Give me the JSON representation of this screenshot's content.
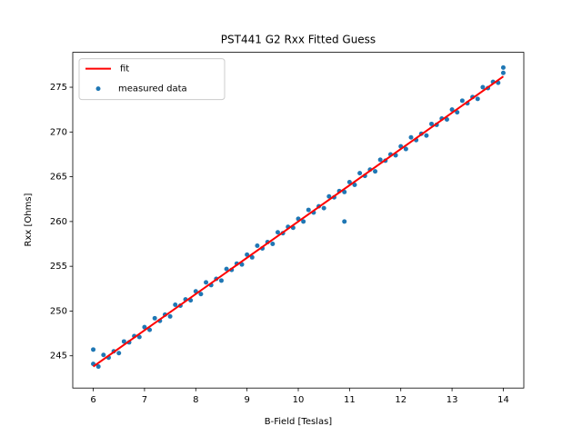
{
  "chart_data": {
    "type": "scatter",
    "title": "PST441 G2 Rxx Fitted Guess",
    "x_label": "B-Field [Teslas]",
    "y_label": "Rxx [Ohms]",
    "xlim": [
      5.6,
      14.4
    ],
    "ylim": [
      241.4,
      278.9
    ],
    "xticks": [
      6,
      7,
      8,
      9,
      10,
      11,
      12,
      13,
      14
    ],
    "yticks": [
      245,
      250,
      255,
      260,
      265,
      270,
      275
    ],
    "legend": "upper left",
    "fit": {
      "name": "fit",
      "color": "#ff0000",
      "x": [
        6,
        14
      ],
      "values": [
        243.8,
        276.2
      ]
    },
    "series": [
      {
        "name": "measured data",
        "color": "#1f77b4",
        "x": [
          6.0,
          6.1,
          6.2,
          6.3,
          6.4,
          6.5,
          6.6,
          6.7,
          6.8,
          6.9,
          7.0,
          7.1,
          7.2,
          7.3,
          7.4,
          7.5,
          7.6,
          7.7,
          7.8,
          7.9,
          8.0,
          8.1,
          8.2,
          8.3,
          8.4,
          8.5,
          8.6,
          8.7,
          8.8,
          8.9,
          9.0,
          9.1,
          9.2,
          9.3,
          9.4,
          9.5,
          9.6,
          9.7,
          9.8,
          9.9,
          10.0,
          10.1,
          10.2,
          10.3,
          10.4,
          10.5,
          10.6,
          10.7,
          10.8,
          10.9,
          11.0,
          11.1,
          11.2,
          11.3,
          11.4,
          11.5,
          11.6,
          11.7,
          11.8,
          11.9,
          12.0,
          12.1,
          12.2,
          12.3,
          12.4,
          12.5,
          12.6,
          12.7,
          12.8,
          12.9,
          13.0,
          13.1,
          13.2,
          13.3,
          13.4,
          13.5,
          13.6,
          13.7,
          13.8,
          13.9,
          14.0,
          10.9,
          14.0,
          6.0
        ],
        "values": [
          244.1,
          243.8,
          245.1,
          244.8,
          245.5,
          245.3,
          246.6,
          246.5,
          247.2,
          247.1,
          248.2,
          247.9,
          249.2,
          248.9,
          249.6,
          249.4,
          250.7,
          250.6,
          251.3,
          251.2,
          252.2,
          251.9,
          253.2,
          252.9,
          253.6,
          253.4,
          254.7,
          254.6,
          255.3,
          255.2,
          256.3,
          256.0,
          257.3,
          257.0,
          257.7,
          257.5,
          258.8,
          258.7,
          259.4,
          259.3,
          260.3,
          260.0,
          261.3,
          261.0,
          261.7,
          261.5,
          262.8,
          262.7,
          263.4,
          263.3,
          264.4,
          264.1,
          265.4,
          265.1,
          265.8,
          265.6,
          266.9,
          266.8,
          267.5,
          267.4,
          268.4,
          268.1,
          269.4,
          269.1,
          269.8,
          269.6,
          270.9,
          270.8,
          271.5,
          271.4,
          272.5,
          272.2,
          273.5,
          273.2,
          273.9,
          273.7,
          275.0,
          274.9,
          275.6,
          275.5,
          276.6,
          260.0,
          277.2,
          245.7
        ]
      }
    ]
  }
}
